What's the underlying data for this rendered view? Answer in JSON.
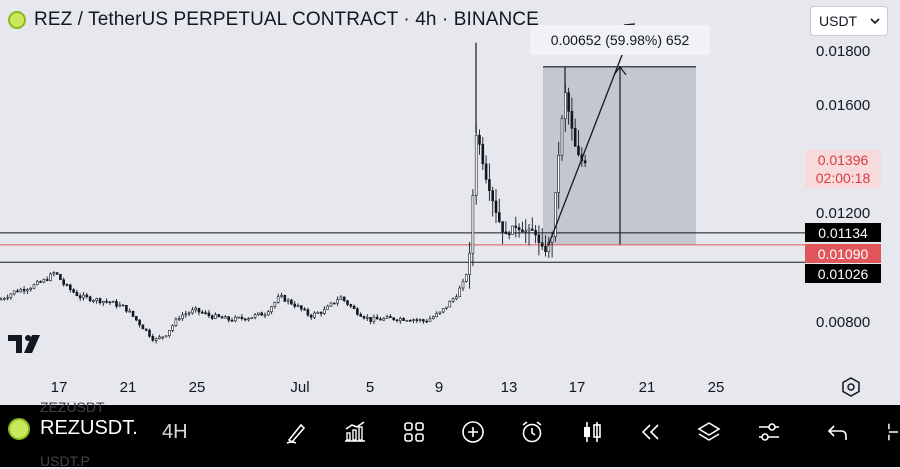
{
  "header": {
    "title": "REZ / TetherUS PERPETUAL CONTRACT · 4h · BINANCE",
    "currency": "USDT",
    "logo_icon": "rez-coin-icon"
  },
  "measure": {
    "label": "0.00652 (59.98%) 652"
  },
  "price_axis": {
    "ticks": [
      "0.01800",
      "0.01600",
      "0.01200",
      "0.00800"
    ],
    "current_price": "0.01396",
    "countdown": "02:00:18",
    "levels": [
      {
        "label": "0.01134",
        "style": "dark"
      },
      {
        "label": "0.01090",
        "style": "red"
      },
      {
        "label": "0.01026",
        "style": "dark"
      }
    ]
  },
  "time_axis": {
    "ticks": [
      "17",
      "21",
      "25",
      "Jul",
      "5",
      "9",
      "13",
      "17",
      "21",
      "25"
    ]
  },
  "bottom_toolbar": {
    "symbol": "REZUSDT.",
    "timeframe": "4H",
    "ghost_top": "ZEZUSDT",
    "ghost_bottom": "USDT.P",
    "tools": [
      "brush-icon",
      "indicators-icon",
      "layout-grid-icon",
      "add-icon",
      "alarm-icon",
      "candle-type-icon",
      "replay-icon",
      "layers-icon",
      "settings-sliders-icon",
      "undo-icon",
      "more-icon"
    ]
  },
  "colors": {
    "up": "#131722",
    "down": "#131722",
    "red_line": "#e1565a",
    "measure_box": "#b8bcc4"
  },
  "chart_data": {
    "type": "candlestick",
    "symbol": "REZUSDT.P",
    "interval": "4h",
    "ylim": [
      0.0068,
      0.0193
    ],
    "x": [
      "Jun 17",
      "Jun 21",
      "Jun 25",
      "Jul 1",
      "Jul 5",
      "Jul 9",
      "Jul 13",
      "Jul 17",
      "Jul 21",
      "Jul 25"
    ],
    "close_path": [
      [
        0,
        0.0089
      ],
      [
        15,
        0.0092
      ],
      [
        30,
        0.00935
      ],
      [
        45,
        0.0096
      ],
      [
        55,
        0.0099
      ],
      [
        65,
        0.0094
      ],
      [
        80,
        0.009
      ],
      [
        95,
        0.0089
      ],
      [
        110,
        0.0088
      ],
      [
        125,
        0.0086
      ],
      [
        140,
        0.008
      ],
      [
        155,
        0.0074
      ],
      [
        165,
        0.0076
      ],
      [
        180,
        0.0083
      ],
      [
        195,
        0.0085
      ],
      [
        210,
        0.0083
      ],
      [
        230,
        0.00815
      ],
      [
        250,
        0.00825
      ],
      [
        265,
        0.0084
      ],
      [
        280,
        0.009
      ],
      [
        295,
        0.0087
      ],
      [
        310,
        0.0083
      ],
      [
        325,
        0.0085
      ],
      [
        340,
        0.009
      ],
      [
        355,
        0.0085
      ],
      [
        370,
        0.00815
      ],
      [
        390,
        0.0082
      ],
      [
        410,
        0.0082
      ],
      [
        425,
        0.0081
      ],
      [
        440,
        0.0084
      ],
      [
        455,
        0.009
      ],
      [
        465,
        0.0096
      ],
      [
        470,
        0.0106
      ],
      [
        473,
        0.0128
      ],
      [
        476,
        0.015
      ],
      [
        480,
        0.0145
      ],
      [
        485,
        0.0135
      ],
      [
        490,
        0.0129
      ],
      [
        497,
        0.012
      ],
      [
        505,
        0.0112
      ],
      [
        515,
        0.0116
      ],
      [
        525,
        0.0114
      ],
      [
        535,
        0.0114
      ],
      [
        540,
        0.0108
      ],
      [
        546,
        0.0107
      ],
      [
        552,
        0.0112
      ],
      [
        556,
        0.013
      ],
      [
        560,
        0.0148
      ],
      [
        565,
        0.0165
      ],
      [
        570,
        0.0155
      ],
      [
        575,
        0.0145
      ],
      [
        580,
        0.014
      ],
      [
        586,
        0.01396
      ]
    ],
    "highs_noted": [
      [
        476,
        0.0183
      ],
      [
        565,
        0.0174
      ]
    ],
    "horizontal_levels": [
      0.01134,
      0.0109,
      0.01026
    ],
    "measurement": {
      "from": 0.0109,
      "to": 0.01742,
      "change": "0.00652",
      "percent": "59.98%",
      "ticks": "652"
    }
  }
}
